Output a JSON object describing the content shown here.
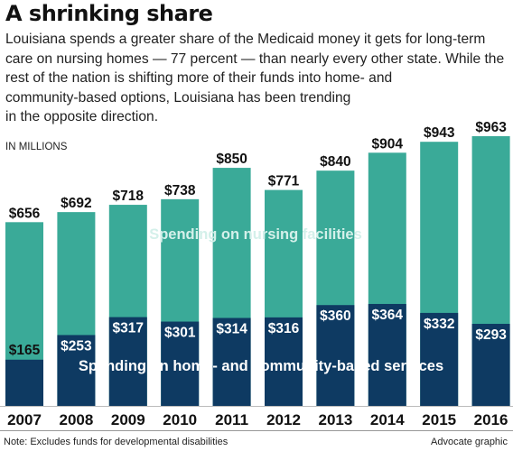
{
  "headline": "A shrinking share",
  "intro_lines": [
    "Louisiana spends a greater share of the Medicaid money it gets for long-term",
    "care on nursing homes — 77 percent — than nearly every other state. While the",
    "rest of the nation is shifting more of their funds into home- and",
    "community-based options, Louisiana has been trending",
    "in the opposite direction."
  ],
  "footnote": "Note: Excludes funds for developmental disabilities",
  "credit": "Advocate graphic",
  "colors": {
    "nursing": "#3aaa98",
    "home": "#0e3a62",
    "nursing_label": "#d4f0ea",
    "home_label": "#ffffff"
  },
  "chart_data": {
    "type": "bar",
    "unit_label": "IN MILLIONS",
    "categories": [
      "2007",
      "2008",
      "2009",
      "2010",
      "2011",
      "2012",
      "2013",
      "2014",
      "2015",
      "2016"
    ],
    "series": [
      {
        "name": "Spending on nursing facilities",
        "values": [
          656,
          692,
          718,
          738,
          850,
          771,
          840,
          904,
          943,
          963
        ],
        "labels": [
          "$656",
          "$692",
          "$718",
          "$738",
          "$850",
          "$771",
          "$840",
          "$904",
          "$943",
          "$963"
        ]
      },
      {
        "name": "Spending on home- and community-based services",
        "values": [
          165,
          253,
          317,
          301,
          314,
          316,
          360,
          364,
          332,
          293
        ],
        "labels": [
          "$165",
          "$253",
          "$317",
          "$301",
          "$314",
          "$316",
          "$360",
          "$364",
          "$332",
          "$293"
        ]
      }
    ],
    "ylim": [
      0,
      1000
    ],
    "grid": false,
    "legend": "inline"
  }
}
